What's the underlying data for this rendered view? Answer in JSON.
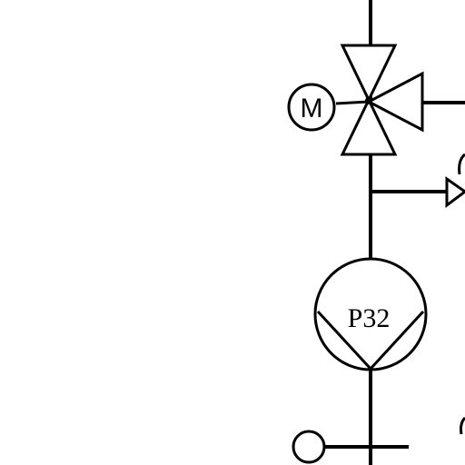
{
  "diagram": {
    "motor_label": "M",
    "pump_label": "P32"
  }
}
